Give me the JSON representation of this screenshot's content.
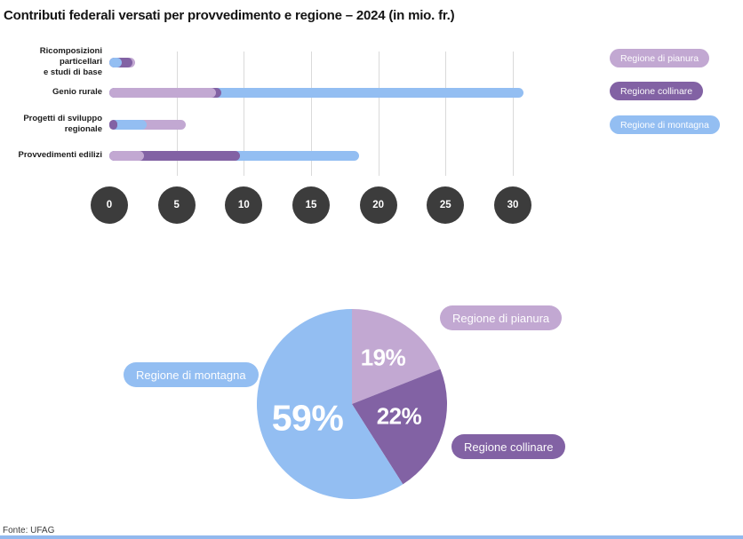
{
  "title": "Contributi federali versati per provvedimento e regione – 2024 (in mio. fr.)",
  "source": "Fonte: UFAG",
  "legend": [
    {
      "label": "Regione di pianura",
      "color": "#c2a8d2"
    },
    {
      "label": "Regione collinare",
      "color": "#8262a4"
    },
    {
      "label": "Regione di montagna",
      "color": "#93bef2"
    }
  ],
  "chart_data": [
    {
      "type": "bar",
      "orientation": "horizontal",
      "style": "overlapping rounded pills; each series bar starts at 0, smaller values drawn on top",
      "title": "Contributi federali versati per provvedimento e regione – 2024 (in mio. fr.)",
      "categories": [
        "Ricomposizioni particellari\ne studi di base",
        "Genio rurale",
        "Progetti di sviluppo regionale",
        "Provvedimenti edilizi"
      ],
      "series": [
        {
          "name": "Regione di pianura",
          "color": "#c2a8d2",
          "values": [
            1.9,
            7.9,
            5.7,
            2.6
          ]
        },
        {
          "name": "Regione collinare",
          "color": "#8262a4",
          "values": [
            1.7,
            8.3,
            0.6,
            9.7
          ]
        },
        {
          "name": "Regione di montagna",
          "color": "#93bef2",
          "values": [
            0.9,
            30.8,
            2.8,
            18.6
          ]
        }
      ],
      "x_ticks": [
        0,
        5,
        10,
        15,
        20,
        25,
        30
      ],
      "xlim": [
        0,
        30
      ],
      "unit": "mio. fr.",
      "grid": "vertical light-gray lines at ticks",
      "legend_position": "right"
    },
    {
      "type": "pie",
      "start_angle": "12 o'clock, clockwise",
      "slices": [
        {
          "label": "Regione di pianura",
          "pct": 19,
          "pct_label": "19%",
          "color": "#c2a8d2"
        },
        {
          "label": "Regione collinare",
          "pct": 22,
          "pct_label": "22%",
          "color": "#8262a4"
        },
        {
          "label": "Regione di montagna",
          "pct": 59,
          "pct_label": "59%",
          "color": "#93bef2"
        }
      ]
    }
  ]
}
